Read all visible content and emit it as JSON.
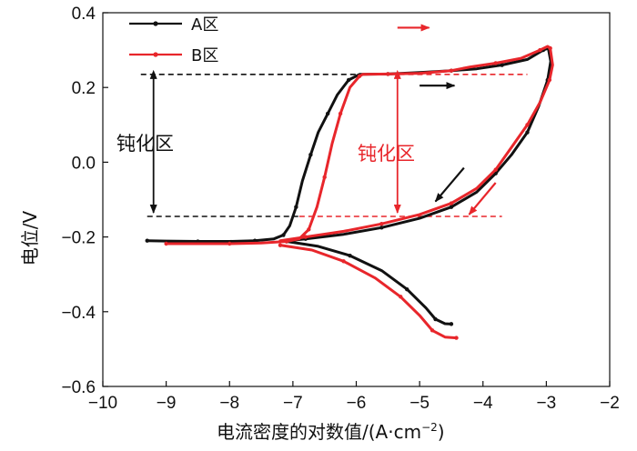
{
  "chart_data": {
    "type": "line",
    "xlabel": "电流密度的对数值/(A·cm",
    "xlabel_sup": "−2",
    "xlabel_close": ")",
    "ylabel": "电位/V",
    "xlim": [
      -10,
      -2
    ],
    "ylim": [
      -0.6,
      0.4
    ],
    "xticks": [
      -10,
      -9,
      -8,
      -7,
      -6,
      -5,
      -4,
      -3,
      -2
    ],
    "xtick_labels": [
      "−10",
      "−9",
      "−8",
      "−7",
      "−6",
      "−5",
      "−4",
      "−3",
      "−2"
    ],
    "yticks": [
      -0.6,
      -0.4,
      -0.2,
      0.0,
      0.2,
      0.4
    ],
    "ytick_labels": [
      "−0.6",
      "−0.4",
      "−0.2",
      "0.0",
      "0.2",
      "0.4"
    ],
    "legend_position": "top-left",
    "colors": {
      "A": "#111111",
      "B": "#e8262b"
    },
    "series": [
      {
        "name": "A区",
        "color": "#111111",
        "forward": [
          [
            -9.3,
            -0.21
          ],
          [
            -9.0,
            -0.211
          ],
          [
            -8.5,
            -0.212
          ],
          [
            -8.0,
            -0.212
          ],
          [
            -7.6,
            -0.21
          ],
          [
            -7.3,
            -0.205
          ],
          [
            -7.15,
            -0.195
          ],
          [
            -7.05,
            -0.17
          ],
          [
            -6.95,
            -0.12
          ],
          [
            -6.85,
            -0.05
          ],
          [
            -6.72,
            0.02
          ],
          [
            -6.6,
            0.08
          ],
          [
            -6.45,
            0.13
          ],
          [
            -6.3,
            0.18
          ],
          [
            -6.12,
            0.22
          ],
          [
            -5.95,
            0.235
          ],
          [
            -5.5,
            0.236
          ],
          [
            -5.0,
            0.24
          ],
          [
            -4.5,
            0.245
          ],
          [
            -4.1,
            0.25
          ],
          [
            -3.7,
            0.26
          ],
          [
            -3.3,
            0.275
          ],
          [
            -3.05,
            0.3
          ],
          [
            -2.97,
            0.305
          ]
        ],
        "reverse": [
          [
            -2.97,
            0.305
          ],
          [
            -2.93,
            0.27
          ],
          [
            -2.98,
            0.22
          ],
          [
            -3.12,
            0.15
          ],
          [
            -3.3,
            0.08
          ],
          [
            -3.55,
            0.02
          ],
          [
            -3.8,
            -0.03
          ],
          [
            -4.1,
            -0.08
          ],
          [
            -4.5,
            -0.12
          ],
          [
            -5.0,
            -0.15
          ],
          [
            -5.6,
            -0.175
          ],
          [
            -6.2,
            -0.193
          ],
          [
            -6.8,
            -0.205
          ],
          [
            -7.1,
            -0.21
          ]
        ],
        "cathodic": [
          [
            -7.1,
            -0.212
          ],
          [
            -6.6,
            -0.225
          ],
          [
            -6.1,
            -0.25
          ],
          [
            -5.6,
            -0.29
          ],
          [
            -5.2,
            -0.34
          ],
          [
            -4.9,
            -0.39
          ],
          [
            -4.75,
            -0.42
          ],
          [
            -4.6,
            -0.432
          ],
          [
            -4.5,
            -0.433
          ]
        ]
      },
      {
        "name": "B区",
        "color": "#e8262b",
        "forward": [
          [
            -9.0,
            -0.218
          ],
          [
            -8.5,
            -0.218
          ],
          [
            -8.0,
            -0.218
          ],
          [
            -7.5,
            -0.216
          ],
          [
            -7.1,
            -0.212
          ],
          [
            -6.9,
            -0.205
          ],
          [
            -6.75,
            -0.18
          ],
          [
            -6.62,
            -0.12
          ],
          [
            -6.5,
            -0.04
          ],
          [
            -6.38,
            0.05
          ],
          [
            -6.25,
            0.13
          ],
          [
            -6.1,
            0.2
          ],
          [
            -5.95,
            0.23
          ],
          [
            -5.9,
            0.235
          ],
          [
            -5.5,
            0.236
          ],
          [
            -5.0,
            0.238
          ],
          [
            -4.5,
            0.245
          ],
          [
            -4.2,
            0.255
          ],
          [
            -3.8,
            0.265
          ],
          [
            -3.4,
            0.278
          ],
          [
            -3.1,
            0.3
          ],
          [
            -2.98,
            0.31
          ],
          [
            -2.94,
            0.305
          ]
        ],
        "reverse": [
          [
            -2.94,
            0.305
          ],
          [
            -2.9,
            0.26
          ],
          [
            -2.95,
            0.22
          ],
          [
            -3.1,
            0.16
          ],
          [
            -3.3,
            0.1
          ],
          [
            -3.55,
            0.04
          ],
          [
            -3.8,
            -0.02
          ],
          [
            -4.1,
            -0.07
          ],
          [
            -4.5,
            -0.11
          ],
          [
            -5.0,
            -0.14
          ],
          [
            -5.6,
            -0.165
          ],
          [
            -6.2,
            -0.185
          ],
          [
            -6.8,
            -0.2
          ],
          [
            -7.2,
            -0.21
          ]
        ],
        "cathodic": [
          [
            -7.2,
            -0.222
          ],
          [
            -6.7,
            -0.235
          ],
          [
            -6.2,
            -0.265
          ],
          [
            -5.7,
            -0.31
          ],
          [
            -5.3,
            -0.36
          ],
          [
            -5.0,
            -0.41
          ],
          [
            -4.8,
            -0.45
          ],
          [
            -4.6,
            -0.468
          ],
          [
            -4.42,
            -0.47
          ]
        ]
      }
    ],
    "annotations": {
      "passivation_label_left": "钝化区",
      "passivation_label_right": "钝化区",
      "upper_level_V": 0.235,
      "lower_level_V": -0.145
    }
  }
}
